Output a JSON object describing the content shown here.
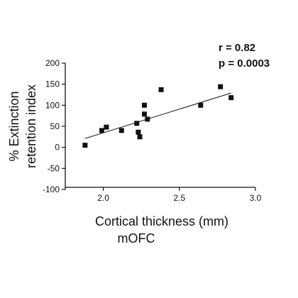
{
  "chart_data": {
    "type": "scatter",
    "title": "",
    "xlabel": "Cortical  thickness (mm)",
    "xsublabel": "mOFC",
    "ylabel_lines": [
      "% Extinction",
      "retention index"
    ],
    "xlim": [
      1.75,
      3.0
    ],
    "ylim": [
      -100,
      200
    ],
    "xticks": [
      2.0,
      2.5,
      3.0
    ],
    "xtick_labels": [
      "2.0",
      "2.5",
      "3.0"
    ],
    "yticks": [
      200,
      150,
      100,
      50,
      0,
      -50,
      -100
    ],
    "ytick_labels": [
      "200",
      "150",
      "100",
      "50",
      "0",
      "-50",
      "-100"
    ],
    "grid": false,
    "points": [
      {
        "x": 1.88,
        "y": 5
      },
      {
        "x": 1.99,
        "y": 40
      },
      {
        "x": 2.02,
        "y": 48
      },
      {
        "x": 2.12,
        "y": 40
      },
      {
        "x": 2.22,
        "y": 57
      },
      {
        "x": 2.23,
        "y": 36
      },
      {
        "x": 2.24,
        "y": 25
      },
      {
        "x": 2.27,
        "y": 100
      },
      {
        "x": 2.27,
        "y": 79
      },
      {
        "x": 2.29,
        "y": 67
      },
      {
        "x": 2.38,
        "y": 137
      },
      {
        "x": 2.64,
        "y": 100
      },
      {
        "x": 2.77,
        "y": 144
      },
      {
        "x": 2.84,
        "y": 118
      }
    ],
    "trendline": {
      "x": [
        1.88,
        2.84
      ],
      "y": [
        21,
        129
      ]
    },
    "annotations": [
      "r = 0.82",
      "p = 0.0003"
    ],
    "colors": {
      "marker": "#111111",
      "line": "#111111",
      "axis": "#111111"
    }
  }
}
